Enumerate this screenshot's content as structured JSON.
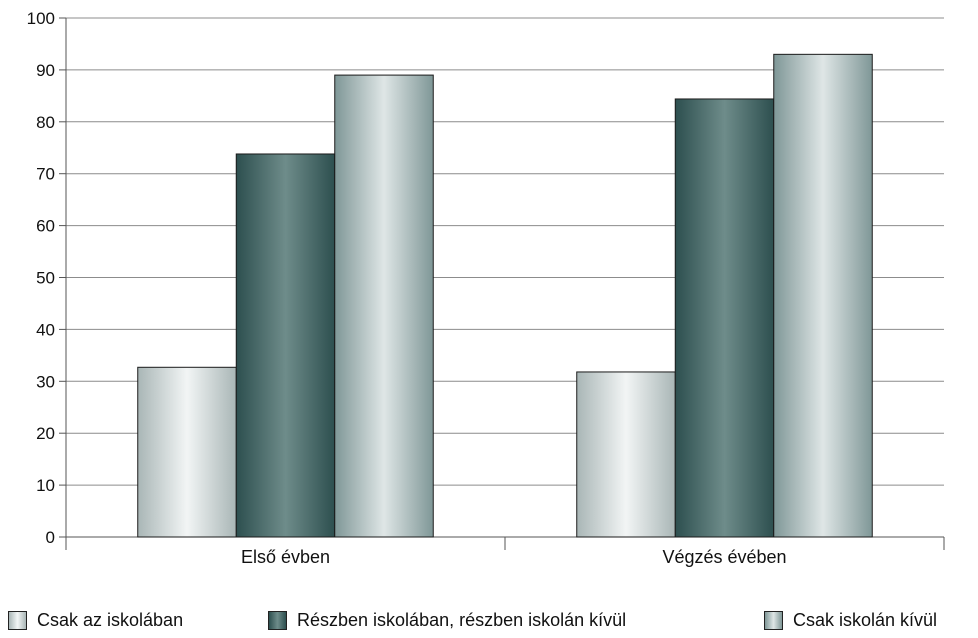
{
  "chart_data": {
    "type": "bar",
    "categories": [
      "Első évben",
      "Végzés évében"
    ],
    "series": [
      {
        "name": "Csak az iskolában",
        "values": [
          32.7,
          31.8
        ],
        "style": "light"
      },
      {
        "name": "Részben iskolában, részben iskolán kívül",
        "values": [
          73.8,
          84.4
        ],
        "style": "dark"
      },
      {
        "name": "Csak iskolán kívül",
        "values": [
          89.0,
          93.0
        ],
        "style": "mid"
      }
    ],
    "ylim": [
      0,
      100
    ],
    "yticks": [
      0,
      10,
      20,
      30,
      40,
      50,
      60,
      70,
      80,
      90,
      100
    ],
    "grid": true,
    "legend_position": "bottom",
    "title": "",
    "xlabel": "",
    "ylabel": ""
  },
  "colors": {
    "light_edge": "#a9b6b6",
    "light_center": "#f2f5f5",
    "dark_edge": "#2d4f4f",
    "dark_center": "#6e8c8a",
    "mid_edge": "#7f9797",
    "mid_center": "#dfe6e6",
    "grid": "#8c8c8c",
    "axis": "#555555"
  }
}
